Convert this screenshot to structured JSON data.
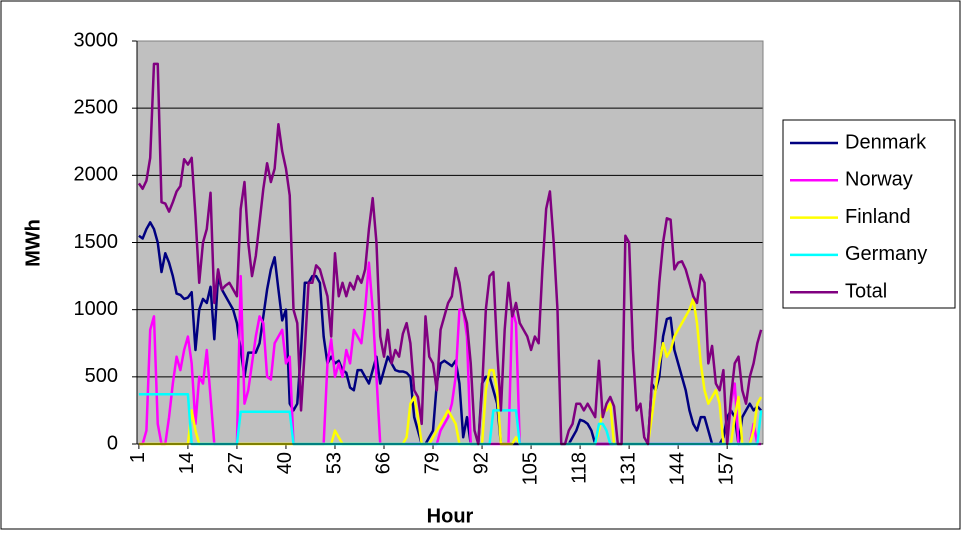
{
  "chart_data": {
    "type": "line",
    "xlabel": "Hour",
    "ylabel": "MWh",
    "x": [
      1,
      2,
      3,
      4,
      5,
      6,
      7,
      8,
      9,
      10,
      11,
      12,
      13,
      14,
      15,
      16,
      17,
      18,
      19,
      20,
      21,
      22,
      23,
      24,
      25,
      26,
      27,
      28,
      29,
      30,
      31,
      32,
      33,
      34,
      35,
      36,
      37,
      38,
      39,
      40,
      41,
      42,
      43,
      44,
      45,
      46,
      47,
      48,
      49,
      50,
      51,
      52,
      53,
      54,
      55,
      56,
      57,
      58,
      59,
      60,
      61,
      62,
      63,
      64,
      65,
      66,
      67,
      68,
      69,
      70,
      71,
      72,
      73,
      74,
      75,
      76,
      77,
      78,
      79,
      80,
      81,
      82,
      83,
      84,
      85,
      86,
      87,
      88,
      89,
      90,
      91,
      92,
      93,
      94,
      95,
      96,
      97,
      98,
      99,
      100,
      101,
      102,
      103,
      104,
      105,
      106,
      107,
      108,
      109,
      110,
      111,
      112,
      113,
      114,
      115,
      116,
      117,
      118,
      119,
      120,
      121,
      122,
      123,
      124,
      125,
      126,
      127,
      128,
      129,
      130,
      131,
      132,
      133,
      134,
      135,
      136,
      137,
      138,
      139,
      140,
      141,
      142,
      143,
      144,
      145,
      146,
      147,
      148,
      149,
      150,
      151,
      152,
      153,
      154,
      155,
      156,
      157,
      158,
      159,
      160,
      161,
      162,
      163,
      164,
      165,
      166
    ],
    "xlim": [
      0.5,
      166.5
    ],
    "xticks": [
      1,
      14,
      27,
      40,
      53,
      66,
      79,
      92,
      105,
      118,
      131,
      144,
      157
    ],
    "ylim": [
      0,
      3000
    ],
    "yticks": [
      0,
      500,
      1000,
      1500,
      2000,
      2500,
      3000
    ],
    "grid": true,
    "legend": "right",
    "series": [
      {
        "name": "Denmark",
        "color": "#000080",
        "values": [
          1550,
          1530,
          1600,
          1650,
          1600,
          1500,
          1280,
          1420,
          1350,
          1250,
          1120,
          1110,
          1080,
          1090,
          1130,
          700,
          1000,
          1080,
          1050,
          1170,
          780,
          1250,
          1150,
          1100,
          1050,
          1000,
          900,
          700,
          500,
          680,
          680,
          680,
          750,
          950,
          1150,
          1300,
          1390,
          1150,
          920,
          1000,
          300,
          250,
          300,
          700,
          1200,
          1200,
          1250,
          1250,
          1200,
          800,
          600,
          650,
          600,
          620,
          550,
          530,
          420,
          400,
          550,
          550,
          500,
          450,
          550,
          650,
          450,
          550,
          650,
          600,
          550,
          540,
          540,
          530,
          500,
          200,
          100,
          0,
          0,
          50,
          100,
          450,
          600,
          620,
          600,
          580,
          620,
          450,
          50,
          200,
          0,
          0,
          0,
          450,
          500,
          500,
          400,
          300,
          0,
          0,
          0,
          0,
          0,
          0,
          0,
          0,
          0,
          0,
          0,
          0,
          0,
          0,
          0,
          0,
          0,
          0,
          0,
          50,
          100,
          180,
          170,
          150,
          100,
          0,
          0,
          0,
          0,
          0,
          0,
          0,
          0,
          0,
          0,
          0,
          0,
          0,
          0,
          0,
          450,
          400,
          500,
          800,
          930,
          940,
          700,
          600,
          500,
          400,
          250,
          150,
          100,
          200,
          200,
          100,
          0,
          0,
          0,
          50,
          200,
          250,
          200,
          0,
          200,
          250,
          300,
          250,
          280,
          250
        ]
      },
      {
        "name": "Norway",
        "color": "#ff00ff",
        "values": [
          0,
          0,
          100,
          850,
          950,
          150,
          0,
          0,
          200,
          450,
          650,
          550,
          700,
          800,
          600,
          150,
          500,
          450,
          700,
          350,
          0,
          0,
          0,
          0,
          0,
          0,
          0,
          1250,
          300,
          400,
          600,
          800,
          950,
          900,
          500,
          480,
          750,
          800,
          850,
          600,
          650,
          0,
          0,
          0,
          0,
          0,
          0,
          0,
          0,
          0,
          600,
          780,
          500,
          600,
          500,
          700,
          600,
          850,
          800,
          750,
          1000,
          1350,
          1000,
          500,
          0,
          0,
          0,
          0,
          0,
          0,
          0,
          0,
          0,
          0,
          0,
          0,
          0,
          0,
          0,
          0,
          100,
          150,
          200,
          300,
          500,
          1000,
          1000,
          800,
          0,
          0,
          0,
          0,
          0,
          0,
          0,
          0,
          0,
          0,
          0,
          1000,
          900,
          0,
          0,
          0,
          0,
          0,
          0,
          0,
          0,
          0,
          0,
          0,
          0,
          0,
          0,
          0,
          0,
          0,
          0,
          0,
          0,
          0,
          0,
          0,
          0,
          0,
          0,
          0,
          0,
          0,
          0,
          0,
          0,
          0,
          0,
          0,
          0,
          0,
          0,
          0,
          0,
          0,
          0,
          0,
          0,
          0,
          0,
          0,
          0,
          0,
          0,
          0,
          0,
          0,
          0,
          0,
          0,
          300,
          450,
          0,
          0,
          0,
          0,
          150,
          0,
          0
        ]
      },
      {
        "name": "Finland",
        "color": "#ffff00",
        "values": [
          0,
          0,
          0,
          0,
          0,
          0,
          0,
          0,
          0,
          0,
          0,
          0,
          0,
          0,
          250,
          100,
          0,
          0,
          0,
          0,
          0,
          0,
          0,
          0,
          0,
          0,
          0,
          0,
          0,
          0,
          0,
          0,
          0,
          0,
          0,
          0,
          0,
          0,
          0,
          0,
          0,
          0,
          0,
          0,
          0,
          0,
          0,
          0,
          0,
          0,
          0,
          0,
          100,
          50,
          0,
          0,
          0,
          0,
          0,
          0,
          0,
          0,
          0,
          0,
          0,
          0,
          0,
          0,
          0,
          0,
          0,
          50,
          300,
          350,
          200,
          0,
          0,
          0,
          50,
          100,
          150,
          200,
          250,
          200,
          150,
          0,
          0,
          0,
          0,
          0,
          0,
          0,
          400,
          550,
          550,
          400,
          0,
          0,
          0,
          0,
          50,
          0,
          0,
          0,
          0,
          0,
          0,
          0,
          0,
          0,
          0,
          0,
          0,
          0,
          0,
          0,
          0,
          0,
          0,
          0,
          0,
          0,
          100,
          250,
          250,
          300,
          0,
          0,
          0,
          0,
          0,
          0,
          0,
          0,
          0,
          0,
          200,
          400,
          600,
          750,
          650,
          700,
          800,
          850,
          900,
          950,
          1000,
          1080,
          900,
          600,
          400,
          300,
          350,
          400,
          300,
          0,
          0,
          0,
          200,
          350,
          0,
          0,
          0,
          100,
          300,
          350
        ]
      },
      {
        "name": "Germany",
        "color": "#00ffff",
        "values": [
          370,
          370,
          370,
          370,
          370,
          370,
          370,
          370,
          370,
          370,
          370,
          370,
          370,
          370,
          0,
          0,
          0,
          0,
          0,
          0,
          0,
          0,
          0,
          0,
          0,
          0,
          0,
          240,
          240,
          240,
          240,
          240,
          240,
          240,
          240,
          240,
          240,
          240,
          240,
          240,
          240,
          0,
          0,
          0,
          0,
          0,
          0,
          0,
          0,
          0,
          0,
          0,
          0,
          0,
          0,
          0,
          0,
          0,
          0,
          0,
          0,
          0,
          0,
          0,
          0,
          0,
          0,
          0,
          0,
          0,
          0,
          0,
          0,
          0,
          0,
          0,
          0,
          0,
          0,
          0,
          0,
          0,
          0,
          0,
          0,
          0,
          0,
          0,
          0,
          0,
          0,
          0,
          0,
          0,
          250,
          250,
          250,
          250,
          250,
          250,
          250,
          0,
          0,
          0,
          0,
          0,
          0,
          0,
          0,
          0,
          0,
          0,
          0,
          0,
          0,
          0,
          0,
          0,
          0,
          0,
          0,
          0,
          150,
          150,
          100,
          0,
          0,
          0,
          0,
          0,
          0,
          0,
          0,
          0,
          0,
          0,
          0,
          0,
          0,
          0,
          0,
          0,
          0,
          0,
          0,
          0,
          0,
          0,
          0,
          0,
          0,
          0,
          0,
          0,
          0,
          0,
          0,
          0,
          0,
          0,
          0,
          0,
          0,
          0,
          0,
          250
        ]
      },
      {
        "name": "Total",
        "color": "#800080",
        "values": [
          1940,
          1900,
          1960,
          2130,
          2830,
          2830,
          1800,
          1790,
          1730,
          1800,
          1880,
          1920,
          2120,
          2080,
          2130,
          1700,
          1200,
          1500,
          1600,
          1870,
          1050,
          1300,
          1150,
          1180,
          1200,
          1150,
          1100,
          1750,
          1950,
          1500,
          1250,
          1400,
          1650,
          1900,
          2090,
          1950,
          2050,
          2380,
          2180,
          2050,
          1850,
          1000,
          900,
          250,
          700,
          1200,
          1200,
          1330,
          1300,
          1200,
          1100,
          800,
          1420,
          1100,
          1200,
          1100,
          1200,
          1150,
          1250,
          1200,
          1300,
          1600,
          1830,
          1500,
          800,
          650,
          850,
          600,
          700,
          650,
          820,
          900,
          750,
          400,
          350,
          150,
          950,
          650,
          600,
          400,
          850,
          950,
          1050,
          1100,
          1310,
          1200,
          1000,
          900,
          600,
          100,
          0,
          400,
          1000,
          1250,
          1280,
          700,
          250,
          850,
          1200,
          950,
          1050,
          900,
          850,
          800,
          700,
          800,
          750,
          1300,
          1750,
          1880,
          1500,
          1000,
          0,
          0,
          100,
          150,
          300,
          300,
          250,
          300,
          250,
          200,
          620,
          200,
          300,
          350,
          280,
          0,
          0,
          1550,
          1500,
          700,
          250,
          300,
          50,
          0,
          450,
          800,
          1200,
          1500,
          1680,
          1670,
          1300,
          1350,
          1360,
          1300,
          1200,
          1100,
          1050,
          1260,
          1200,
          600,
          730,
          450,
          400,
          550,
          0,
          350,
          600,
          650,
          400,
          300,
          500,
          600,
          750,
          850
        ]
      }
    ]
  }
}
